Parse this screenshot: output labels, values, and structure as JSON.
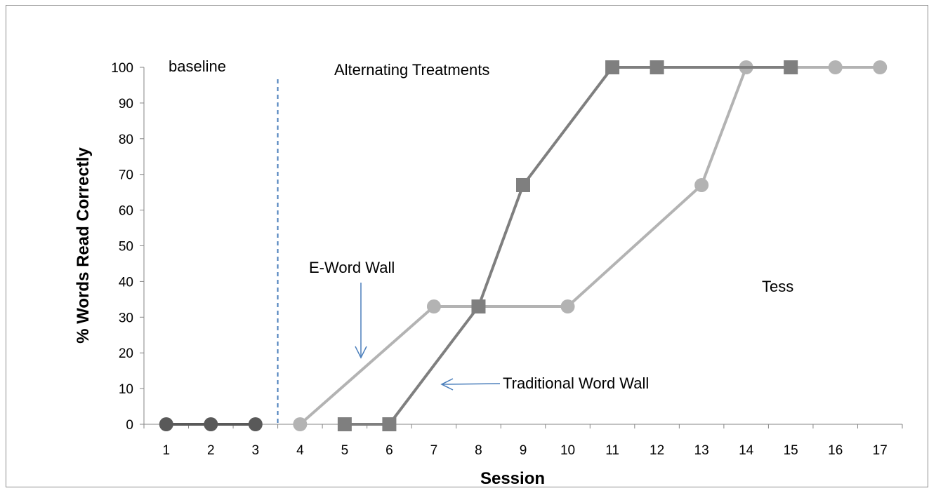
{
  "chart_data": {
    "type": "line",
    "xlabel": "Session",
    "ylabel": "% Words Read Correctly",
    "ylim": [
      0,
      100
    ],
    "yticks": [
      0,
      10,
      20,
      30,
      40,
      50,
      60,
      70,
      80,
      90,
      100
    ],
    "xticks": [
      1,
      2,
      3,
      4,
      5,
      6,
      7,
      8,
      9,
      10,
      11,
      12,
      13,
      14,
      15,
      16,
      17
    ],
    "grid": false,
    "legend": "none",
    "phase_change_after_session": 3.5,
    "series": [
      {
        "name": "baseline",
        "marker": "circle",
        "color": "#595959",
        "points": [
          [
            1,
            0
          ],
          [
            2,
            0
          ],
          [
            3,
            0
          ]
        ]
      },
      {
        "name": "E-Word Wall",
        "marker": "circle",
        "color": "#b3b3b3",
        "points": [
          [
            4,
            0
          ],
          [
            7,
            33
          ],
          [
            10,
            33
          ],
          [
            13,
            67
          ],
          [
            14,
            100
          ],
          [
            16,
            100
          ],
          [
            17,
            100
          ]
        ]
      },
      {
        "name": "Traditional Word Wall",
        "marker": "square",
        "color": "#7f7f7f",
        "points": [
          [
            5,
            0
          ],
          [
            6,
            0
          ],
          [
            8,
            33
          ],
          [
            9,
            67
          ],
          [
            11,
            100
          ],
          [
            12,
            100
          ],
          [
            15,
            100
          ]
        ]
      }
    ],
    "annotations": {
      "baseline": "baseline",
      "treatment": "Alternating Treatments",
      "eword": "E-Word Wall",
      "traditional": "Traditional Word Wall",
      "participant": "Tess"
    },
    "arrow_color": "#4a7ebb",
    "phase_line_color": "#4a7ebb"
  }
}
